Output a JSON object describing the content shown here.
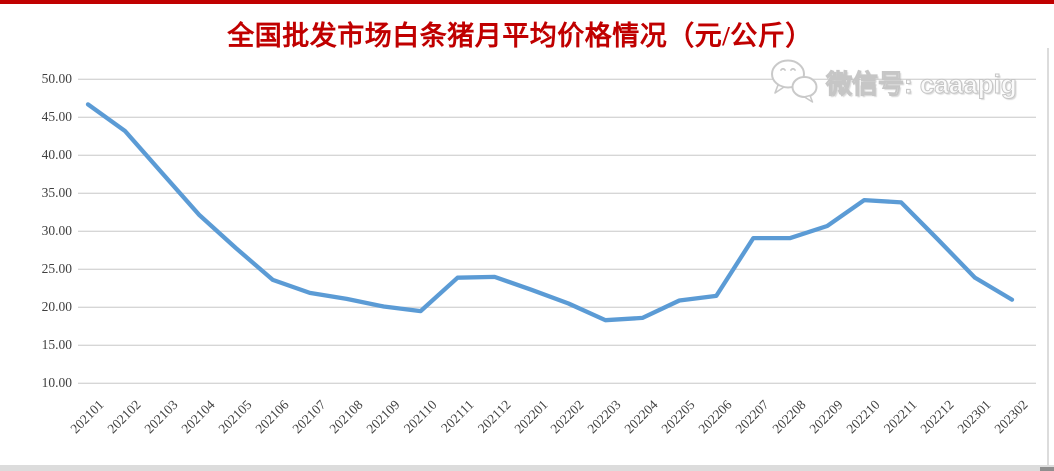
{
  "page": {
    "accent_bar_color": "#C00000"
  },
  "watermark": {
    "icon": "wechat-icon",
    "text": "微信号: caaapig"
  },
  "chart_data": {
    "type": "line",
    "title": "全国批发市场白条猪月平均价格情况（元/公斤）",
    "title_color": "#C00000",
    "categories": [
      "202101",
      "202102",
      "202103",
      "202104",
      "202105",
      "202106",
      "202107",
      "202108",
      "202109",
      "202110",
      "202111",
      "202112",
      "202201",
      "202202",
      "202203",
      "202204",
      "202205",
      "202206",
      "202207",
      "202208",
      "202209",
      "202210",
      "202211",
      "202212",
      "202301",
      "202302"
    ],
    "values": [
      46.7,
      43.2,
      37.7,
      32.2,
      27.8,
      23.6,
      21.9,
      21.1,
      20.1,
      19.5,
      23.9,
      24.0,
      22.3,
      20.5,
      18.3,
      18.6,
      20.9,
      21.5,
      29.1,
      29.1,
      30.7,
      34.1,
      33.8,
      28.9,
      23.9,
      21.0
    ],
    "xlabel": "",
    "ylabel": "",
    "ylim": [
      10,
      50
    ],
    "ytick_step": 5,
    "ytick_labels": [
      "50.00",
      "45.00",
      "40.00",
      "35.00",
      "30.00",
      "25.00",
      "20.00",
      "15.00",
      "10.00"
    ],
    "grid": "horizontal",
    "legend": "none",
    "line_color": "#5B9BD5",
    "gridline_color": "#D6D6D6",
    "axis_text_color": "#404040"
  }
}
